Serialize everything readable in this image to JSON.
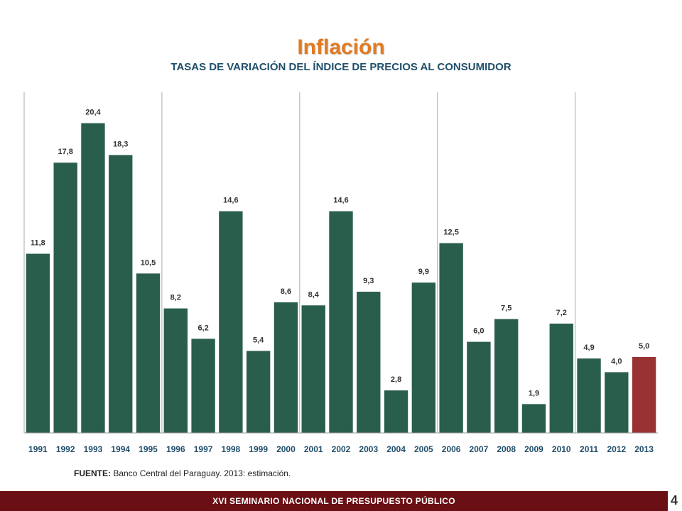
{
  "colors": {
    "bar": "#2a5e4c",
    "highlight": "#993333",
    "title": "#e07b22",
    "subtitle": "#1f4e6b",
    "footer": "#6a0f14"
  },
  "chart_data": {
    "type": "bar",
    "title": "Inflación",
    "subtitle": "TASAS DE VARIACIÓN DEL ÍNDICE DE PRECIOS AL CONSUMIDOR",
    "categories": [
      "1991",
      "1992",
      "1993",
      "1994",
      "1995",
      "1996",
      "1997",
      "1998",
      "1999",
      "2000",
      "2001",
      "2002",
      "2003",
      "2004",
      "2005",
      "2006",
      "2007",
      "2008",
      "2009",
      "2010",
      "2011",
      "2012",
      "2013"
    ],
    "values": [
      11.8,
      17.8,
      20.4,
      18.3,
      10.5,
      8.2,
      6.2,
      14.6,
      5.4,
      8.6,
      8.4,
      14.6,
      9.3,
      2.8,
      9.9,
      12.5,
      6.0,
      7.5,
      1.9,
      7.2,
      4.9,
      4.0,
      5.0
    ],
    "labels": [
      "11,8",
      "17,8",
      "20,4",
      "18,3",
      "10,5",
      "8,2",
      "6,2",
      "14,6",
      "5,4",
      "8,6",
      "8,4",
      "14,6",
      "9,3",
      "2,8",
      "9,9",
      "12,5",
      "6,0",
      "7,5",
      "1,9",
      "7,2",
      "4,9",
      "4,0",
      "5,0"
    ],
    "highlight": [
      "2013"
    ],
    "ylim": [
      0,
      21.5
    ],
    "xlabel": "",
    "ylabel": "",
    "grid": false,
    "legend": "none"
  },
  "footer": {
    "source_label": "FUENTE:",
    "source_text": " Banco Central del Paraguay. 2013: estimación.",
    "seminar": "XVI SEMINARIO NACIONAL DE PRESUPUESTO PÚBLICO",
    "page_number": "4"
  }
}
